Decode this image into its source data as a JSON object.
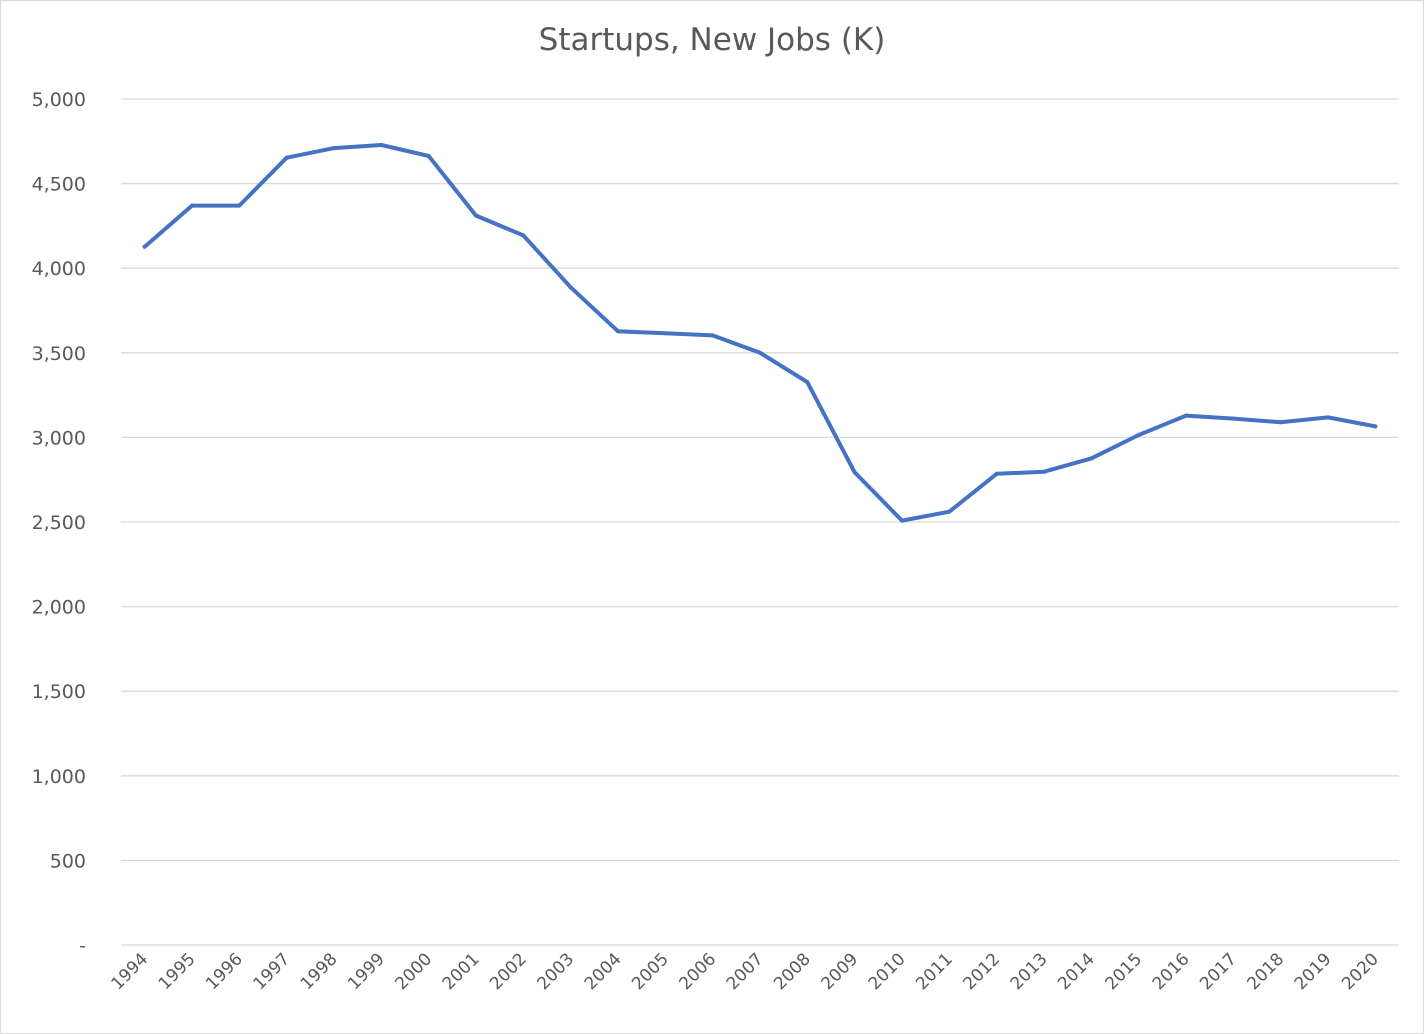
{
  "chart_data": {
    "type": "line",
    "title": "Startups, New Jobs (K)",
    "xlabel": "",
    "ylabel": "",
    "x": [
      "1994",
      "1995",
      "1996",
      "1997",
      "1998",
      "1999",
      "2000",
      "2001",
      "2002",
      "2003",
      "2004",
      "2005",
      "2006",
      "2007",
      "2008",
      "2009",
      "2010",
      "2011",
      "2012",
      "2013",
      "2014",
      "2015",
      "2016",
      "2017",
      "2018",
      "2019",
      "2020"
    ],
    "series": [
      {
        "values": [
          4127,
          4370,
          4370,
          4653,
          4710,
          4728,
          4663,
          4311,
          4194,
          3887,
          3627,
          3615,
          3603,
          3500,
          3327,
          2793,
          2508,
          2561,
          2785,
          2797,
          2876,
          3014,
          3129,
          3111,
          3090,
          3118,
          3065
        ],
        "color": "#4472c4"
      }
    ],
    "ylim": [
      0,
      5000
    ],
    "yticks": [
      0,
      500,
      1000,
      1500,
      2000,
      2500,
      3000,
      3500,
      4000,
      4500,
      5000
    ],
    "ytick_labels": [
      "-",
      "500",
      "1,000",
      "1,500",
      "2,000",
      "2,500",
      "3,000",
      "3,500",
      "4,000",
      "4,500",
      "5,000"
    ],
    "grid": true,
    "legend": "none",
    "gridline_color": "#d9d9d9"
  }
}
